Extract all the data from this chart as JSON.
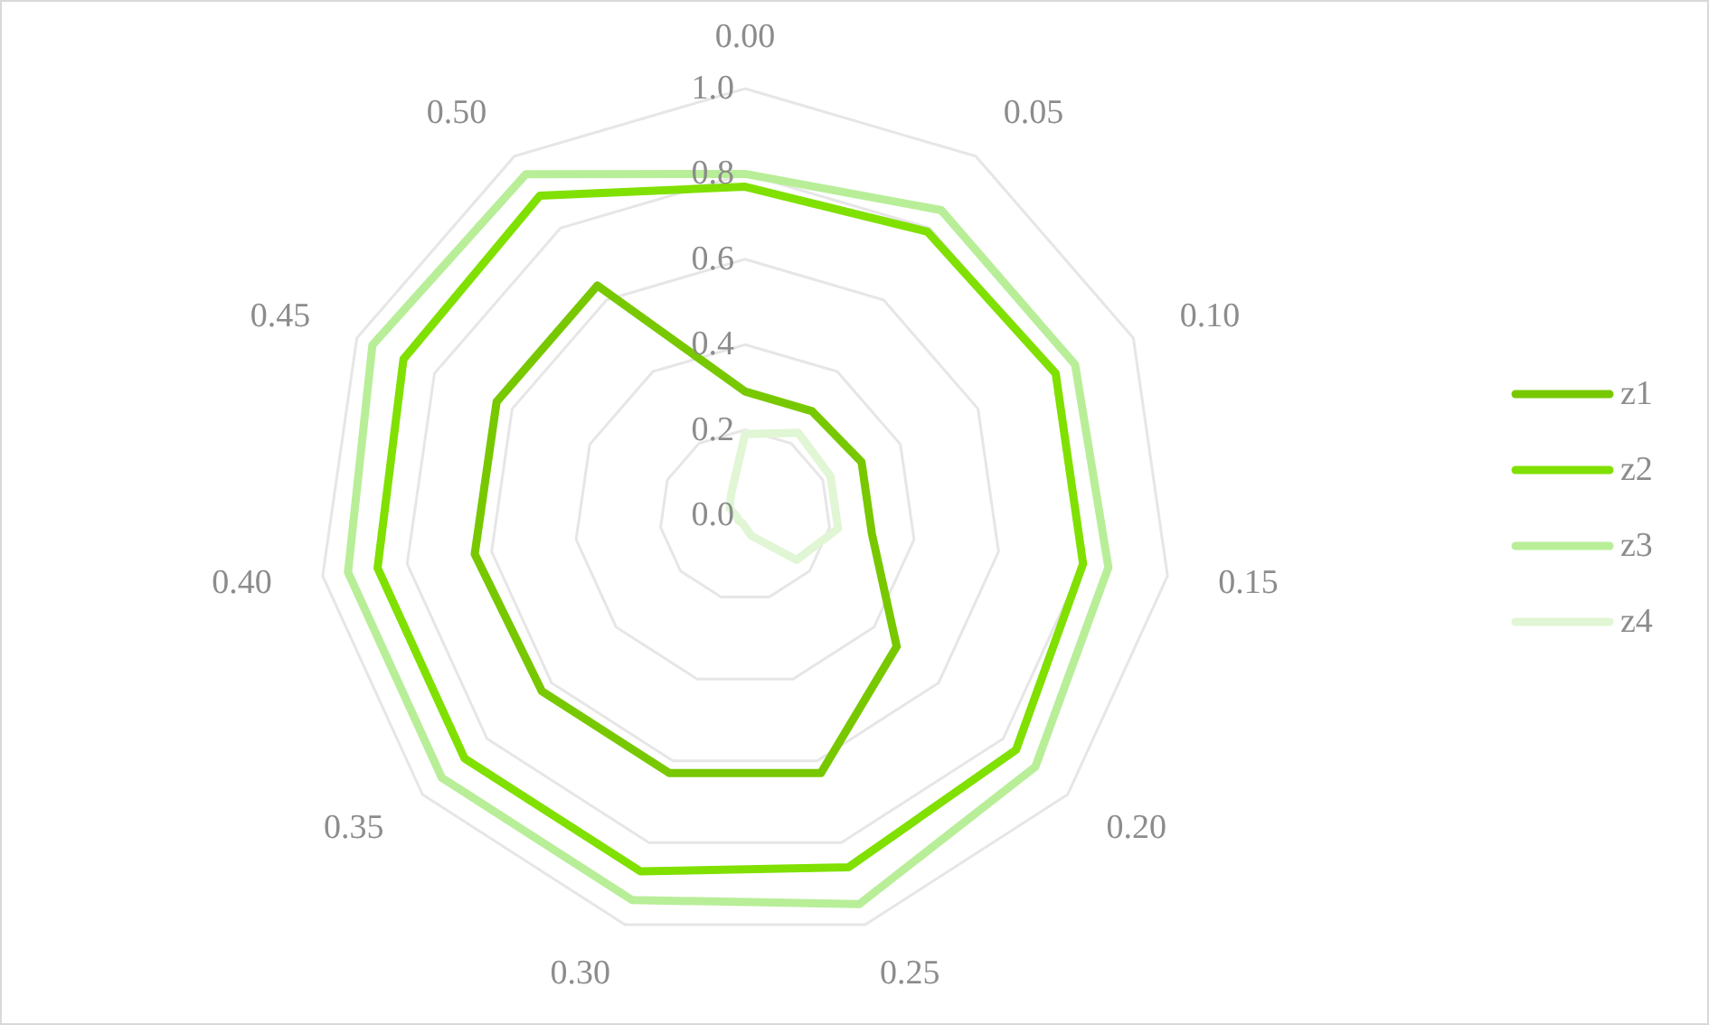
{
  "chart_data": {
    "type": "radar",
    "categories": [
      "0.00",
      "0.05",
      "0.10",
      "0.15",
      "0.20",
      "0.25",
      "0.30",
      "0.35",
      "0.40",
      "0.45",
      "0.50"
    ],
    "series": [
      {
        "name": "z1",
        "color": "#78c800",
        "values": [
          0.29,
          0.29,
          0.3,
          0.3,
          0.47,
          0.63,
          0.63,
          0.63,
          0.64,
          0.64,
          0.64
        ]
      },
      {
        "name": "z2",
        "color": "#80e000",
        "values": [
          0.77,
          0.79,
          0.8,
          0.8,
          0.84,
          0.86,
          0.87,
          0.87,
          0.87,
          0.88,
          0.89
        ]
      },
      {
        "name": "z3",
        "color": "#b8ee98",
        "values": [
          0.8,
          0.85,
          0.85,
          0.86,
          0.9,
          0.95,
          0.94,
          0.94,
          0.94,
          0.96,
          0.95
        ]
      },
      {
        "name": "z4",
        "color": "#e0f6d4",
        "values": [
          0.19,
          0.23,
          0.22,
          0.22,
          0.16,
          0.05,
          0.02,
          0.02,
          0.02,
          0.04,
          0.06
        ]
      }
    ],
    "ylim": [
      0,
      1
    ],
    "yticks": [
      {
        "value": 0,
        "label": "0.0"
      },
      0.2,
      0.4,
      0.6,
      0.8,
      {
        "value": 1,
        "label": "1.0"
      }
    ],
    "grid": true,
    "legend": "right"
  }
}
